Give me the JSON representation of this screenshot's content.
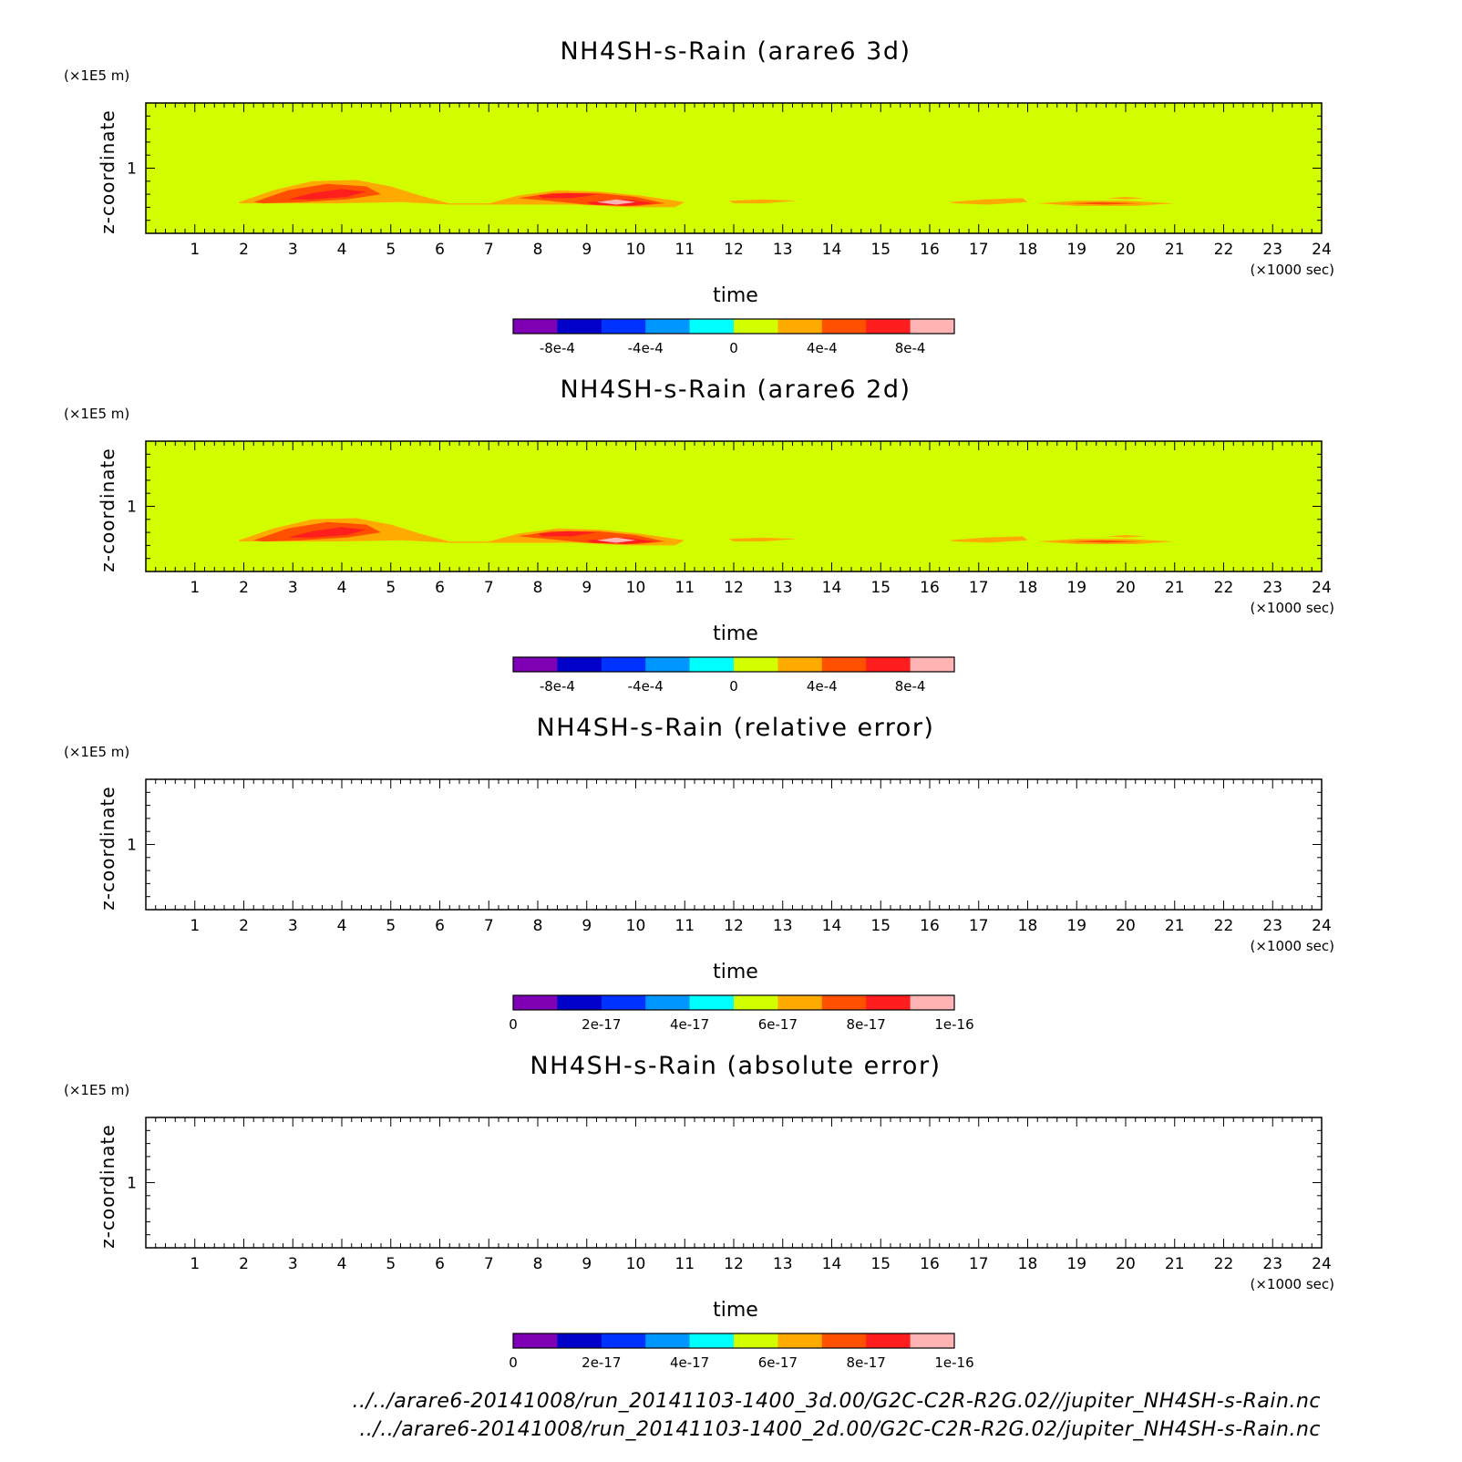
{
  "chart_data": [
    {
      "type": "heatmap",
      "title": "NH4SH-s-Rain (arare6 3d)",
      "xlabel": "time",
      "x_unit": "(×1000 sec)",
      "ylabel": "z-coordinate",
      "y_unit": "(×1E5 m)",
      "xlim": [
        0.0,
        24.0
      ],
      "ylim": [
        0.5,
        1.5
      ],
      "x_ticks": [
        "1",
        "2",
        "3",
        "4",
        "5",
        "6",
        "7",
        "8",
        "9",
        "10",
        "11",
        "12",
        "13",
        "14",
        "15",
        "16",
        "17",
        "18",
        "19",
        "20",
        "21",
        "22",
        "23",
        "24"
      ],
      "y_ticks": [
        "1"
      ],
      "background_color": "#d2ff00",
      "colorbar": {
        "labels": [
          "-8e-4",
          "-4e-4",
          "0",
          "4e-4",
          "8e-4"
        ],
        "colors": [
          "#7f00b4",
          "#0000c8",
          "#0032ff",
          "#0096ff",
          "#00ffff",
          "#d2ff00",
          "#ffaa00",
          "#ff5000",
          "#ff1e1e",
          "#ffb4b4"
        ]
      },
      "contours": [
        {
          "level": "0 to 2e-4",
          "color": "#ffaa00",
          "points": [
            [
              1.9,
              0.74
            ],
            [
              2.6,
              0.83
            ],
            [
              3.4,
              0.9
            ],
            [
              4.3,
              0.91
            ],
            [
              5.0,
              0.86
            ],
            [
              5.6,
              0.79
            ],
            [
              6.2,
              0.73
            ],
            [
              7.0,
              0.73
            ],
            [
              7.6,
              0.79
            ],
            [
              8.4,
              0.83
            ],
            [
              9.3,
              0.82
            ],
            [
              10.1,
              0.79
            ],
            [
              11.0,
              0.74
            ],
            [
              10.8,
              0.7
            ],
            [
              9.8,
              0.7
            ],
            [
              8.8,
              0.72
            ],
            [
              7.8,
              0.72
            ],
            [
              7.0,
              0.72
            ],
            [
              6.2,
              0.72
            ],
            [
              5.2,
              0.74
            ],
            [
              3.9,
              0.73
            ],
            [
              2.7,
              0.73
            ],
            [
              1.9,
              0.73
            ]
          ]
        },
        {
          "level": "2e-4 to 4e-4",
          "color": "#ff5000",
          "points": [
            [
              2.2,
              0.74
            ],
            [
              2.9,
              0.83
            ],
            [
              3.7,
              0.88
            ],
            [
              4.5,
              0.86
            ],
            [
              4.8,
              0.8
            ],
            [
              4.1,
              0.76
            ],
            [
              3.2,
              0.74
            ],
            [
              2.4,
              0.73
            ]
          ]
        },
        {
          "level": "4e-4 to 6e-4",
          "color": "#ff1e1e",
          "points": [
            [
              2.9,
              0.76
            ],
            [
              3.4,
              0.81
            ],
            [
              4.0,
              0.84
            ],
            [
              4.5,
              0.82
            ],
            [
              4.1,
              0.78
            ],
            [
              3.4,
              0.76
            ]
          ]
        },
        {
          "level": "2e-4 to 4e-4",
          "color": "#ff5000",
          "points": [
            [
              7.6,
              0.77
            ],
            [
              8.3,
              0.81
            ],
            [
              9.2,
              0.81
            ],
            [
              10.0,
              0.78
            ],
            [
              10.6,
              0.73
            ],
            [
              10.0,
              0.71
            ],
            [
              9.0,
              0.72
            ],
            [
              8.2,
              0.75
            ]
          ]
        },
        {
          "level": "4e-4 to 6e-4",
          "color": "#ff1e1e",
          "points": [
            [
              8.0,
              0.79
            ],
            [
              8.6,
              0.81
            ],
            [
              9.2,
              0.8
            ],
            [
              8.7,
              0.77
            ],
            [
              8.1,
              0.77
            ]
          ]
        },
        {
          "level": "4e-4 to 6e-4",
          "color": "#ff1e1e",
          "points": [
            [
              9.0,
              0.74
            ],
            [
              9.8,
              0.76
            ],
            [
              10.4,
              0.73
            ],
            [
              9.8,
              0.71
            ],
            [
              9.1,
              0.72
            ]
          ]
        },
        {
          "level": "8e-4 to 1e-3",
          "color": "#ffb4b4",
          "points": [
            [
              9.2,
              0.74
            ],
            [
              9.6,
              0.76
            ],
            [
              10.0,
              0.74
            ],
            [
              9.6,
              0.72
            ]
          ]
        },
        {
          "level": "0 to 2e-4",
          "color": "#ffaa00",
          "points": [
            [
              11.9,
              0.75
            ],
            [
              12.6,
              0.76
            ],
            [
              13.3,
              0.75
            ],
            [
              12.6,
              0.73
            ],
            [
              12.0,
              0.73
            ]
          ]
        },
        {
          "level": "0 to 2e-4",
          "color": "#ffaa00",
          "points": [
            [
              16.4,
              0.74
            ],
            [
              17.1,
              0.76
            ],
            [
              17.9,
              0.77
            ],
            [
              18.0,
              0.74
            ],
            [
              17.2,
              0.72
            ],
            [
              16.5,
              0.73
            ]
          ]
        },
        {
          "level": "0 to 2e-4",
          "color": "#ffaa00",
          "points": [
            [
              18.2,
              0.73
            ],
            [
              19.0,
              0.75
            ],
            [
              20.0,
              0.75
            ],
            [
              21.0,
              0.73
            ],
            [
              20.2,
              0.71
            ],
            [
              19.0,
              0.71
            ]
          ]
        },
        {
          "level": "2e-4 to 4e-4",
          "color": "#ff5000",
          "points": [
            [
              18.8,
              0.73
            ],
            [
              19.5,
              0.74
            ],
            [
              20.3,
              0.73
            ],
            [
              19.6,
              0.72
            ]
          ]
        },
        {
          "level": "0 to 2e-4",
          "color": "#ffaa00",
          "points": [
            [
              19.6,
              0.77
            ],
            [
              20.0,
              0.78
            ],
            [
              20.4,
              0.77
            ],
            [
              20.0,
              0.76
            ]
          ]
        }
      ]
    },
    {
      "type": "heatmap",
      "title": "NH4SH-s-Rain (arare6 2d)",
      "xlabel": "time",
      "x_unit": "(×1000 sec)",
      "ylabel": "z-coordinate",
      "y_unit": "(×1E5 m)",
      "xlim": [
        0.0,
        24.0
      ],
      "ylim": [
        0.5,
        1.5
      ],
      "x_ticks": [
        "1",
        "2",
        "3",
        "4",
        "5",
        "6",
        "7",
        "8",
        "9",
        "10",
        "11",
        "12",
        "13",
        "14",
        "15",
        "16",
        "17",
        "18",
        "19",
        "20",
        "21",
        "22",
        "23",
        "24"
      ],
      "y_ticks": [
        "1"
      ],
      "background_color": "#d2ff00",
      "colorbar": {
        "labels": [
          "-8e-4",
          "-4e-4",
          "0",
          "4e-4",
          "8e-4"
        ],
        "colors": [
          "#7f00b4",
          "#0000c8",
          "#0032ff",
          "#0096ff",
          "#00ffff",
          "#d2ff00",
          "#ffaa00",
          "#ff5000",
          "#ff1e1e",
          "#ffb4b4"
        ]
      },
      "contours": "same_as_3d"
    },
    {
      "type": "heatmap",
      "title": "NH4SH-s-Rain (relative error)",
      "xlabel": "time",
      "x_unit": "(×1000 sec)",
      "ylabel": "z-coordinate",
      "y_unit": "(×1E5 m)",
      "xlim": [
        0.0,
        24.0
      ],
      "ylim": [
        0.5,
        1.5
      ],
      "x_ticks": [
        "1",
        "2",
        "3",
        "4",
        "5",
        "6",
        "7",
        "8",
        "9",
        "10",
        "11",
        "12",
        "13",
        "14",
        "15",
        "16",
        "17",
        "18",
        "19",
        "20",
        "21",
        "22",
        "23",
        "24"
      ],
      "y_ticks": [
        "1"
      ],
      "background_color": "#ffffff",
      "colorbar": {
        "labels": [
          "0",
          "2e-17",
          "4e-17",
          "6e-17",
          "8e-17",
          "1e-16"
        ],
        "colors": [
          "#7f00b4",
          "#0000c8",
          "#0032ff",
          "#0096ff",
          "#00ffff",
          "#d2ff00",
          "#ffaa00",
          "#ff5000",
          "#ff1e1e",
          "#ffb4b4"
        ]
      },
      "contours": []
    },
    {
      "type": "heatmap",
      "title": "NH4SH-s-Rain (absolute error)",
      "xlabel": "time",
      "x_unit": "(×1000 sec)",
      "ylabel": "z-coordinate",
      "y_unit": "(×1E5 m)",
      "xlim": [
        0.0,
        24.0
      ],
      "ylim": [
        0.5,
        1.5
      ],
      "x_ticks": [
        "1",
        "2",
        "3",
        "4",
        "5",
        "6",
        "7",
        "8",
        "9",
        "10",
        "11",
        "12",
        "13",
        "14",
        "15",
        "16",
        "17",
        "18",
        "19",
        "20",
        "21",
        "22",
        "23",
        "24"
      ],
      "y_ticks": [
        "1"
      ],
      "background_color": "#ffffff",
      "colorbar": {
        "labels": [
          "0",
          "2e-17",
          "4e-17",
          "6e-17",
          "8e-17",
          "1e-16"
        ],
        "colors": [
          "#7f00b4",
          "#0000c8",
          "#0032ff",
          "#0096ff",
          "#00ffff",
          "#d2ff00",
          "#ffaa00",
          "#ff5000",
          "#ff1e1e",
          "#ffb4b4"
        ]
      },
      "contours": []
    }
  ],
  "footer": {
    "line1": "../../arare6-20141008/run_20141103-1400_3d.00/G2C-C2R-R2G.02//jupiter_NH4SH-s-Rain.nc",
    "line2": "../../arare6-20141008/run_20141103-1400_2d.00/G2C-C2R-R2G.02/jupiter_NH4SH-s-Rain.nc"
  }
}
